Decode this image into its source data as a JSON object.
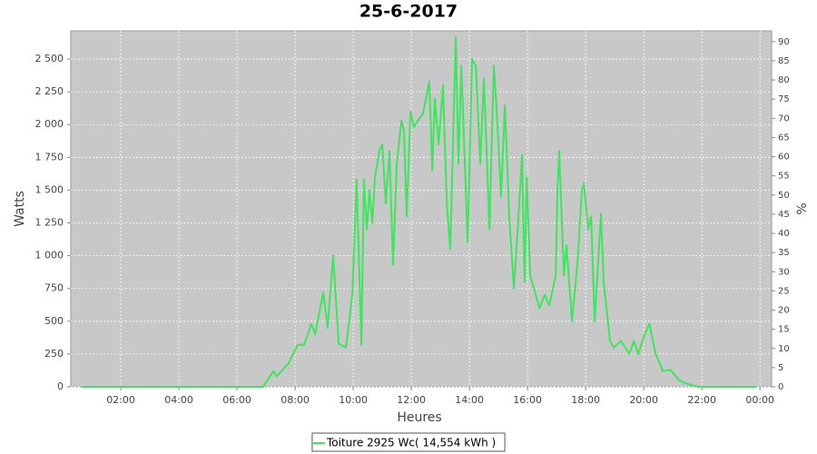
{
  "chart_data": {
    "type": "line",
    "title": "25-6-2017",
    "x_label": "Heures",
    "y_label": "Watts",
    "y2_label": "%",
    "x": [
      0.66,
      6.9,
      7.25,
      7.37,
      7.78,
      8.09,
      8.31,
      8.56,
      8.69,
      8.97,
      9.12,
      9.31,
      9.5,
      9.75,
      9.97,
      10.12,
      10.28,
      10.37,
      10.47,
      10.56,
      10.66,
      10.75,
      10.9,
      11.0,
      11.12,
      11.25,
      11.37,
      11.5,
      11.66,
      11.75,
      11.84,
      11.97,
      12.09,
      12.28,
      12.4,
      12.62,
      12.72,
      12.81,
      12.94,
      13.09,
      13.22,
      13.34,
      13.53,
      13.62,
      13.72,
      13.94,
      14.09,
      14.22,
      14.37,
      14.5,
      14.69,
      14.84,
      14.94,
      15.09,
      15.22,
      15.37,
      15.53,
      15.66,
      15.81,
      15.9,
      15.97,
      16.09,
      16.41,
      16.59,
      16.75,
      16.97,
      17.03,
      17.09,
      17.25,
      17.34,
      17.53,
      17.72,
      17.87,
      17.94,
      18.09,
      18.19,
      18.31,
      18.53,
      18.62,
      18.84,
      18.97,
      19.22,
      19.5,
      19.66,
      19.81,
      20.0,
      20.19,
      20.41,
      20.66,
      20.91,
      21.22,
      21.53,
      21.9,
      23.87
    ],
    "series": [
      {
        "name": "Toiture 2925 Wc( 14,554 kWh )",
        "color": "#3de65c",
        "values": [
          0,
          0,
          120,
          80,
          180,
          320,
          320,
          480,
          400,
          720,
          450,
          1000,
          330,
          300,
          700,
          1580,
          320,
          1580,
          1200,
          1500,
          1250,
          1600,
          1800,
          1850,
          1400,
          1800,
          930,
          1700,
          2030,
          1950,
          1300,
          2100,
          1980,
          2050,
          2080,
          2330,
          1650,
          2200,
          1850,
          2300,
          1400,
          1050,
          2670,
          1700,
          2450,
          1100,
          2500,
          2450,
          1700,
          2350,
          1200,
          2450,
          2100,
          1450,
          2150,
          1300,
          750,
          1200,
          1770,
          800,
          1600,
          850,
          600,
          700,
          620,
          850,
          1500,
          1800,
          850,
          1080,
          500,
          950,
          1500,
          1550,
          1200,
          1300,
          500,
          1320,
          800,
          350,
          300,
          350,
          250,
          350,
          250,
          380,
          480,
          250,
          120,
          130,
          50,
          20,
          0,
          0
        ]
      }
    ],
    "xlim": [
      0.28,
      24.4
    ],
    "xticks": [
      {
        "value": 2,
        "label": "02:00"
      },
      {
        "value": 4,
        "label": "04:00"
      },
      {
        "value": 6,
        "label": "06:00"
      },
      {
        "value": 8,
        "label": "08:00"
      },
      {
        "value": 10,
        "label": "10:00"
      },
      {
        "value": 12,
        "label": "12:00"
      },
      {
        "value": 14,
        "label": "14:00"
      },
      {
        "value": 16,
        "label": "16:00"
      },
      {
        "value": 18,
        "label": "18:00"
      },
      {
        "value": 20,
        "label": "20:00"
      },
      {
        "value": 22,
        "label": "22:00"
      },
      {
        "value": 24,
        "label": "00:00"
      }
    ],
    "ylim": [
      0,
      2715
    ],
    "yticks": [
      0,
      250,
      500,
      750,
      {
        "value": 1000,
        "label": "1 000"
      },
      {
        "value": 1250,
        "label": "1 250"
      },
      {
        "value": 1500,
        "label": "1 500"
      },
      {
        "value": 1750,
        "label": "1 750"
      },
      {
        "value": 2000,
        "label": "2 000"
      },
      {
        "value": 2250,
        "label": "2 250"
      },
      {
        "value": 2500,
        "label": "2 500"
      }
    ],
    "y2lim": [
      0,
      92.8
    ],
    "y2ticks": [
      0,
      5,
      10,
      15,
      20,
      25,
      30,
      35,
      40,
      45,
      50,
      55,
      60,
      65,
      70,
      75,
      80,
      85,
      90
    ],
    "grid": true,
    "legend": "bottom"
  }
}
